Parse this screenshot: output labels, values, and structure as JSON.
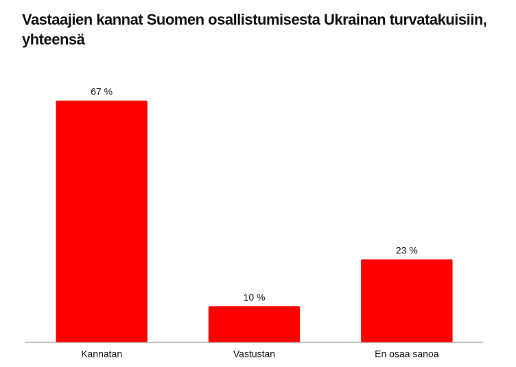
{
  "chart_data": {
    "type": "bar",
    "title": "Vastaajien kannat Suomen osallistumisesta Ukrainan turvatakuisiin, yhteensä",
    "categories": [
      "Kannatan",
      "Vastustan",
      "En osaa sanoa"
    ],
    "values": [
      67,
      10,
      23
    ],
    "value_labels": [
      "67 %",
      "10 %",
      "23 %"
    ],
    "color": "#ff0000",
    "ylim": [
      0,
      70
    ]
  }
}
